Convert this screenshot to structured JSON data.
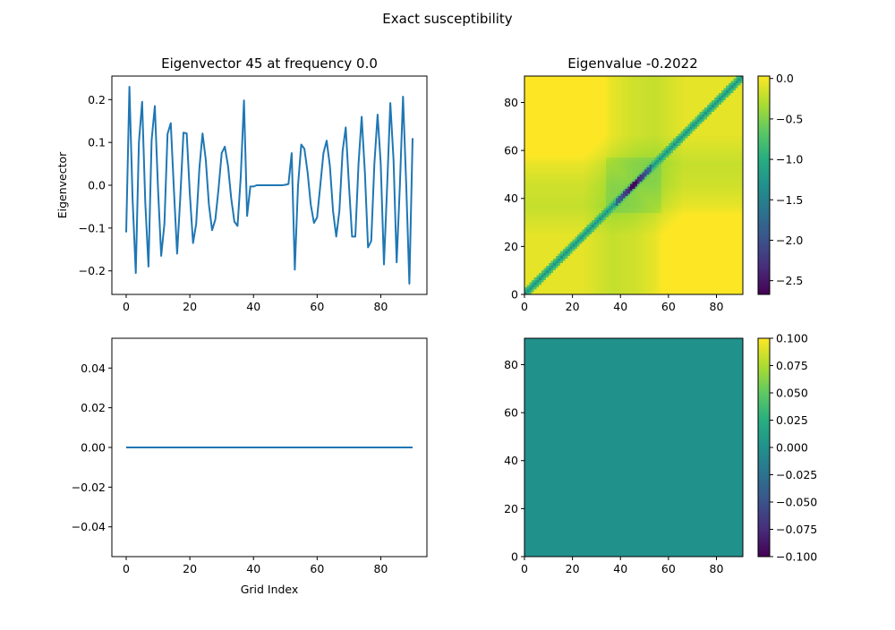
{
  "figure": {
    "title": "Exact susceptibility"
  },
  "chart_data": [
    {
      "id": "top_left",
      "type": "line",
      "title": "Eigenvector 45 at frequency 0.0",
      "xlabel": "",
      "ylabel": "Eigenvector",
      "xlim": [
        -4.5,
        94.5
      ],
      "ylim": [
        -0.255,
        0.255
      ],
      "xticks": [
        0,
        20,
        40,
        60,
        80
      ],
      "xtick_labels": [
        "0",
        "20",
        "40",
        "60",
        "80"
      ],
      "yticks": [
        -0.2,
        -0.1,
        0.0,
        0.1,
        0.2
      ],
      "ytick_labels": [
        "−0.2",
        "−0.1",
        "0.0",
        "0.1",
        "0.2"
      ],
      "color": "#1f77b4",
      "x": [
        0,
        1,
        2,
        3,
        4,
        5,
        6,
        7,
        8,
        9,
        10,
        11,
        12,
        13,
        14,
        15,
        16,
        17,
        18,
        19,
        20,
        21,
        22,
        23,
        24,
        25,
        26,
        27,
        28,
        29,
        30,
        31,
        32,
        33,
        34,
        35,
        36,
        37,
        38,
        39,
        40,
        41,
        42,
        43,
        44,
        45,
        46,
        47,
        48,
        49,
        50,
        51,
        52,
        53,
        54,
        55,
        56,
        57,
        58,
        59,
        60,
        61,
        62,
        63,
        64,
        65,
        66,
        67,
        68,
        69,
        70,
        71,
        72,
        73,
        74,
        75,
        76,
        77,
        78,
        79,
        80,
        81,
        82,
        83,
        84,
        85,
        86,
        87,
        88,
        89,
        90
      ],
      "y": [
        -0.11,
        0.23,
        -0.03,
        -0.205,
        0.1,
        0.195,
        -0.04,
        -0.19,
        0.105,
        0.185,
        -0.01,
        -0.165,
        -0.09,
        0.12,
        0.145,
        -0.01,
        -0.16,
        -0.03,
        0.123,
        0.121,
        -0.02,
        -0.135,
        -0.09,
        0.04,
        0.121,
        0.06,
        -0.045,
        -0.105,
        -0.08,
        -0.01,
        0.075,
        0.09,
        0.045,
        -0.03,
        -0.085,
        -0.095,
        0.02,
        0.198,
        -0.072,
        -0.003,
        -0.003,
        0.0,
        0.0,
        0.0,
        0.0,
        0.0,
        0.0,
        0.0,
        0.0,
        0.0,
        0.001,
        0.003,
        0.075,
        -0.197,
        0.0,
        0.095,
        0.085,
        0.03,
        -0.045,
        -0.088,
        -0.075,
        0.0,
        0.075,
        0.104,
        0.045,
        -0.06,
        -0.12,
        -0.06,
        0.08,
        0.135,
        0.0,
        -0.12,
        -0.12,
        0.05,
        0.16,
        0.03,
        -0.145,
        -0.13,
        0.05,
        0.165,
        0.05,
        -0.185,
        0.0,
        0.192,
        0.06,
        -0.18,
        0.0,
        0.207,
        0.0,
        -0.23,
        0.11
      ]
    },
    {
      "id": "top_right",
      "type": "heatmap",
      "title": "Eigenvalue -0.2022",
      "description_values": "91x91 matrix, 0 on background with low values along the diagonal and a deep minimum near the center",
      "xlim": [
        0,
        91
      ],
      "ylim": [
        0,
        91
      ],
      "xticks": [
        0,
        20,
        40,
        60,
        80
      ],
      "xtick_labels": [
        "0",
        "20",
        "40",
        "60",
        "80"
      ],
      "yticks": [
        0,
        20,
        40,
        60,
        80
      ],
      "ytick_labels": [
        "0",
        "20",
        "40",
        "60",
        "80"
      ],
      "vmin": -2.67,
      "vmax": 0.03,
      "colorbar_ticks": [
        0.0,
        -0.5,
        -1.0,
        -1.5,
        -2.0,
        -2.5
      ],
      "colorbar_tick_labels": [
        "0.0",
        "−0.5",
        "−1.0",
        "−1.5",
        "−2.0",
        "−2.5"
      ],
      "colormap": "viridis"
    },
    {
      "id": "bottom_left",
      "type": "line",
      "title": "",
      "xlabel": "Grid Index",
      "ylabel": "",
      "xlim": [
        -4.5,
        94.5
      ],
      "ylim": [
        -0.055,
        0.055
      ],
      "xticks": [
        0,
        20,
        40,
        60,
        80
      ],
      "xtick_labels": [
        "0",
        "20",
        "40",
        "60",
        "80"
      ],
      "yticks": [
        -0.04,
        -0.02,
        0.0,
        0.02,
        0.04
      ],
      "ytick_labels": [
        "−0.04",
        "−0.02",
        "0.00",
        "0.02",
        "0.04"
      ],
      "color": "#1f77b4",
      "x": [
        0,
        90
      ],
      "y": [
        0.0,
        0.0
      ]
    },
    {
      "id": "bottom_right",
      "type": "heatmap",
      "title": "",
      "constant_value": 0.0,
      "fill_color": "#21918c",
      "xlim": [
        0,
        91
      ],
      "ylim": [
        0,
        91
      ],
      "xticks": [
        0,
        20,
        40,
        60,
        80
      ],
      "xtick_labels": [
        "0",
        "20",
        "40",
        "60",
        "80"
      ],
      "yticks": [
        0,
        20,
        40,
        60,
        80
      ],
      "ytick_labels": [
        "0",
        "20",
        "40",
        "60",
        "80"
      ],
      "vmin": -0.1,
      "vmax": 0.1,
      "colorbar_ticks": [
        0.1,
        0.075,
        0.05,
        0.025,
        0.0,
        -0.025,
        -0.05,
        -0.075,
        -0.1
      ],
      "colorbar_tick_labels": [
        "0.100",
        "0.075",
        "0.050",
        "0.025",
        "0.000",
        "−0.025",
        "−0.050",
        "−0.075",
        "−0.100"
      ],
      "colormap": "viridis"
    }
  ]
}
